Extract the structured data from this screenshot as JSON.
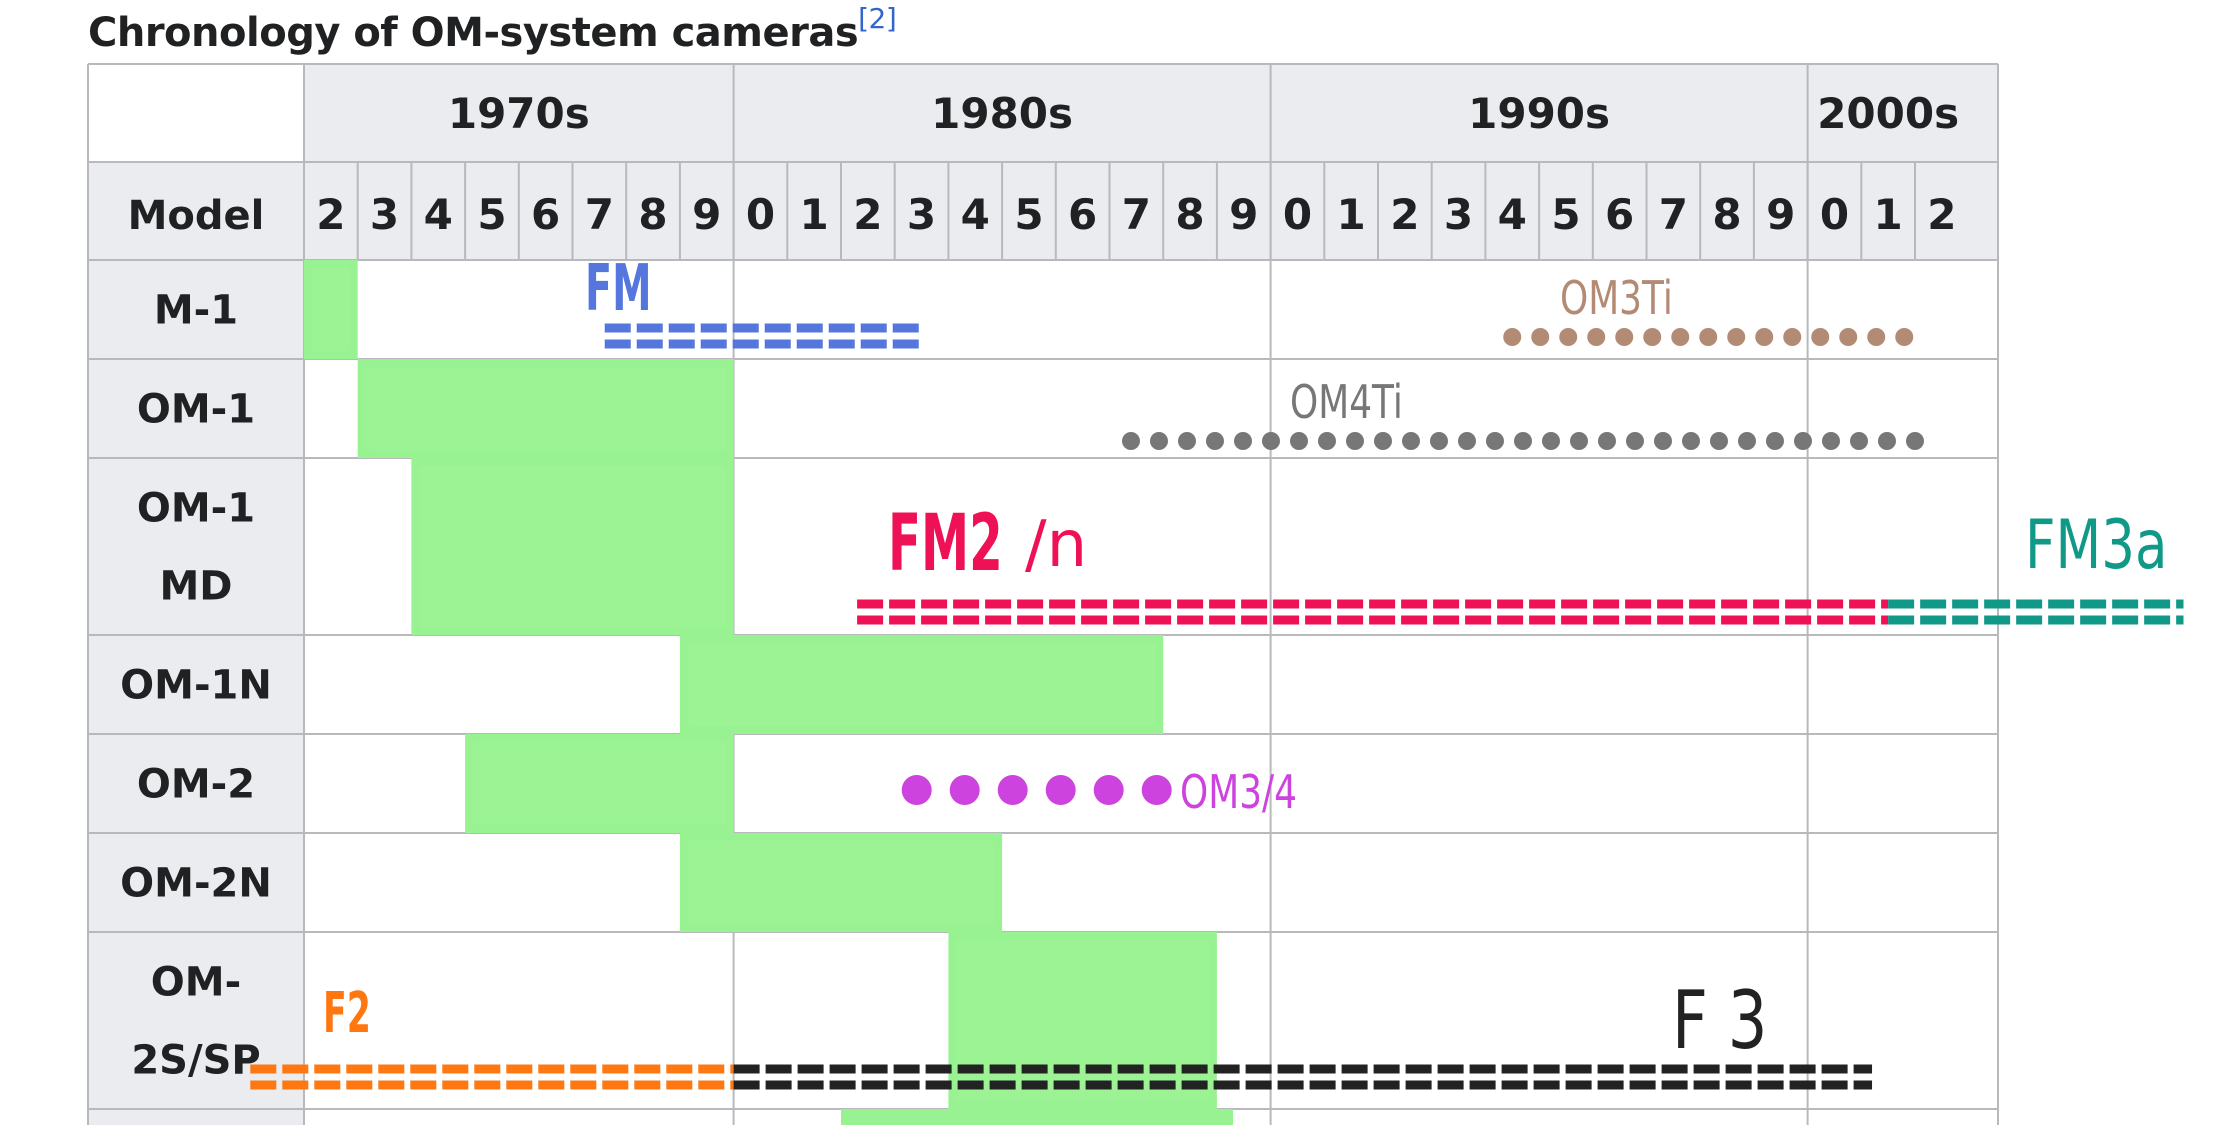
{
  "title": "Chronology of OM-system cameras",
  "citation": "[2]",
  "chart_data": {
    "type": "timeline",
    "row_header_label": "Model",
    "decades": [
      "1970s",
      "1980s",
      "1990s",
      "2000s"
    ],
    "year_ticks": [
      "2",
      "3",
      "4",
      "5",
      "6",
      "7",
      "8",
      "9",
      "0",
      "1",
      "2",
      "3",
      "4",
      "5",
      "6",
      "7",
      "8",
      "9",
      "0",
      "1",
      "2",
      "3",
      "4",
      "5",
      "6",
      "7",
      "8",
      "9",
      "0",
      "1",
      "2"
    ],
    "year_range": [
      1972,
      2002
    ],
    "bar_color": "#99f291",
    "models": [
      {
        "label_lines": [
          "M-1"
        ],
        "start": 1972,
        "end": 1973
      },
      {
        "label_lines": [
          "OM-1"
        ],
        "start": 1973,
        "end": 1980
      },
      {
        "label_lines": [
          "OM-1",
          "MD"
        ],
        "start": 1974,
        "end": 1980
      },
      {
        "label_lines": [
          "OM-1N"
        ],
        "start": 1979,
        "end": 1988
      },
      {
        "label_lines": [
          "OM-2"
        ],
        "start": 1975,
        "end": 1980
      },
      {
        "label_lines": [
          "OM-2N"
        ],
        "start": 1979,
        "end": 1985
      },
      {
        "label_lines": [
          "OM-",
          "2S/SP"
        ],
        "start": 1984,
        "end": 1989
      }
    ],
    "overlays": [
      {
        "label": "FM",
        "color": "#5577dd",
        "style": "dash",
        "start": 1977.6,
        "end": 1983.5
      },
      {
        "label": "OM3Ti",
        "color": "#b38a74",
        "style": "dot",
        "start": 1994.5,
        "end": 2002.2
      },
      {
        "label": "OM4Ti",
        "color": "#777777",
        "style": "dot",
        "start": 1987.4,
        "end": 2002.2
      },
      {
        "label": "FM2",
        "suffix": "/n",
        "color": "#ee1155",
        "style": "dash",
        "start": 1982.3,
        "end": 2001.5
      },
      {
        "label": "FM3a",
        "color": "#119988",
        "style": "dash",
        "start": 2001.5,
        "end": 2007
      },
      {
        "label": "OM3/4",
        "color": "#cc44dd",
        "style": "bigdot",
        "start": 1983,
        "end": 1988
      },
      {
        "label": "F2",
        "color": "#ff7711",
        "style": "dash",
        "start": 1971,
        "end": 1980
      },
      {
        "label": "F 3",
        "color": "#222222",
        "style": "dash",
        "start": 1980,
        "end": 2001.2
      }
    ]
  }
}
